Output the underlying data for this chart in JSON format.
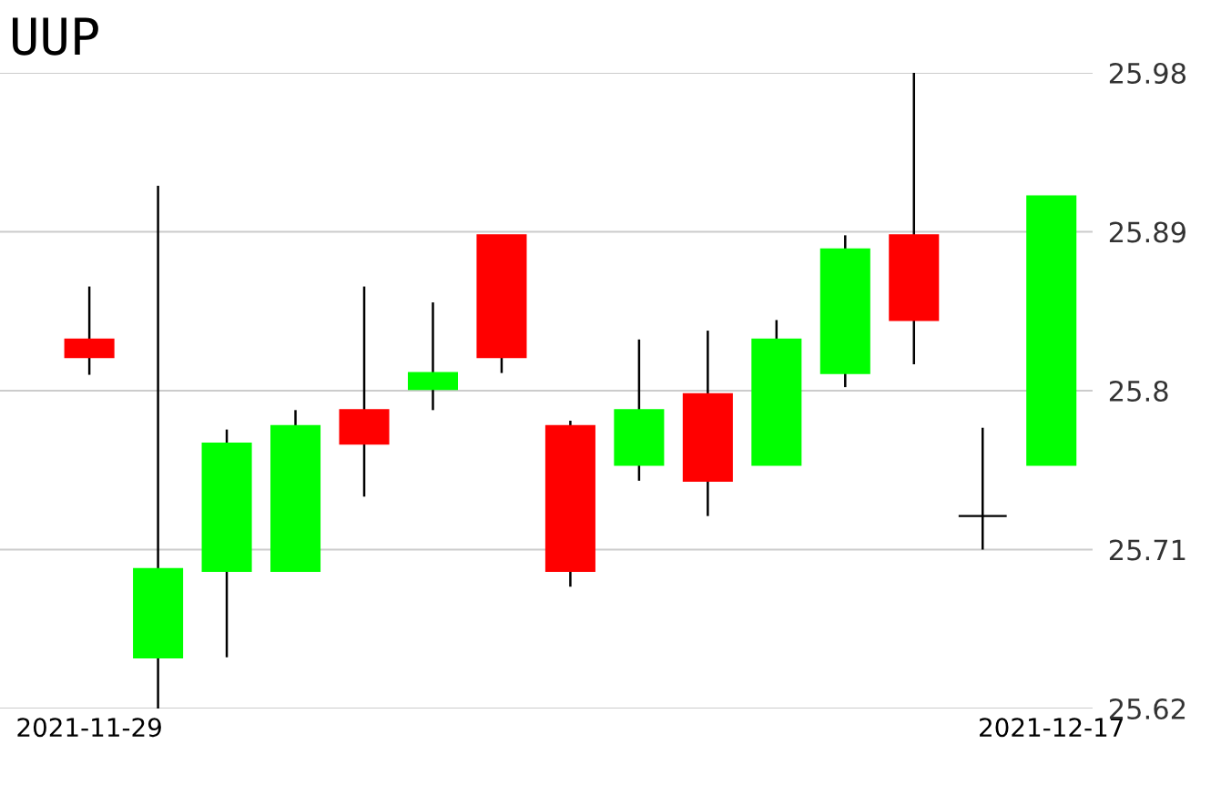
{
  "chart_data": {
    "type": "candlestick",
    "title": "UUP",
    "categories": [
      "2021-11-29",
      null,
      null,
      null,
      null,
      null,
      null,
      null,
      null,
      null,
      null,
      null,
      null,
      null,
      "2021-12-17"
    ],
    "ohlc": [
      [
        25.829,
        25.859,
        25.809,
        25.819
      ],
      [
        25.649,
        25.916,
        25.62,
        25.699
      ],
      [
        25.698,
        25.778,
        25.649,
        25.77
      ],
      [
        25.698,
        25.789,
        25.698,
        25.78
      ],
      [
        25.789,
        25.859,
        25.74,
        25.77
      ],
      [
        25.801,
        25.85,
        25.789,
        25.81
      ],
      [
        25.888,
        25.888,
        25.81,
        25.819
      ],
      [
        25.78,
        25.783,
        25.689,
        25.698
      ],
      [
        25.758,
        25.829,
        25.749,
        25.789
      ],
      [
        25.798,
        25.834,
        25.729,
        25.749
      ],
      [
        25.758,
        25.84,
        25.758,
        25.829
      ],
      [
        25.81,
        25.888,
        25.802,
        25.88
      ],
      [
        25.888,
        25.98,
        25.815,
        25.84
      ],
      [
        25.729,
        25.779,
        25.71,
        25.729
      ],
      [
        25.758,
        25.91,
        25.758,
        25.91
      ]
    ],
    "colors": [
      "#ff0000",
      "#00ff00",
      "#00ff00",
      "#00ff00",
      "#ff0000",
      "#00ff00",
      "#ff0000",
      "#ff0000",
      "#00ff00",
      "#ff0000",
      "#00ff00",
      "#00ff00",
      "#ff0000",
      "#000000",
      "#00ff00"
    ],
    "ylim": [
      25.62,
      25.98
    ],
    "yticks": [
      25.62,
      25.71,
      25.8,
      25.89,
      25.98
    ],
    "grid": "y"
  }
}
